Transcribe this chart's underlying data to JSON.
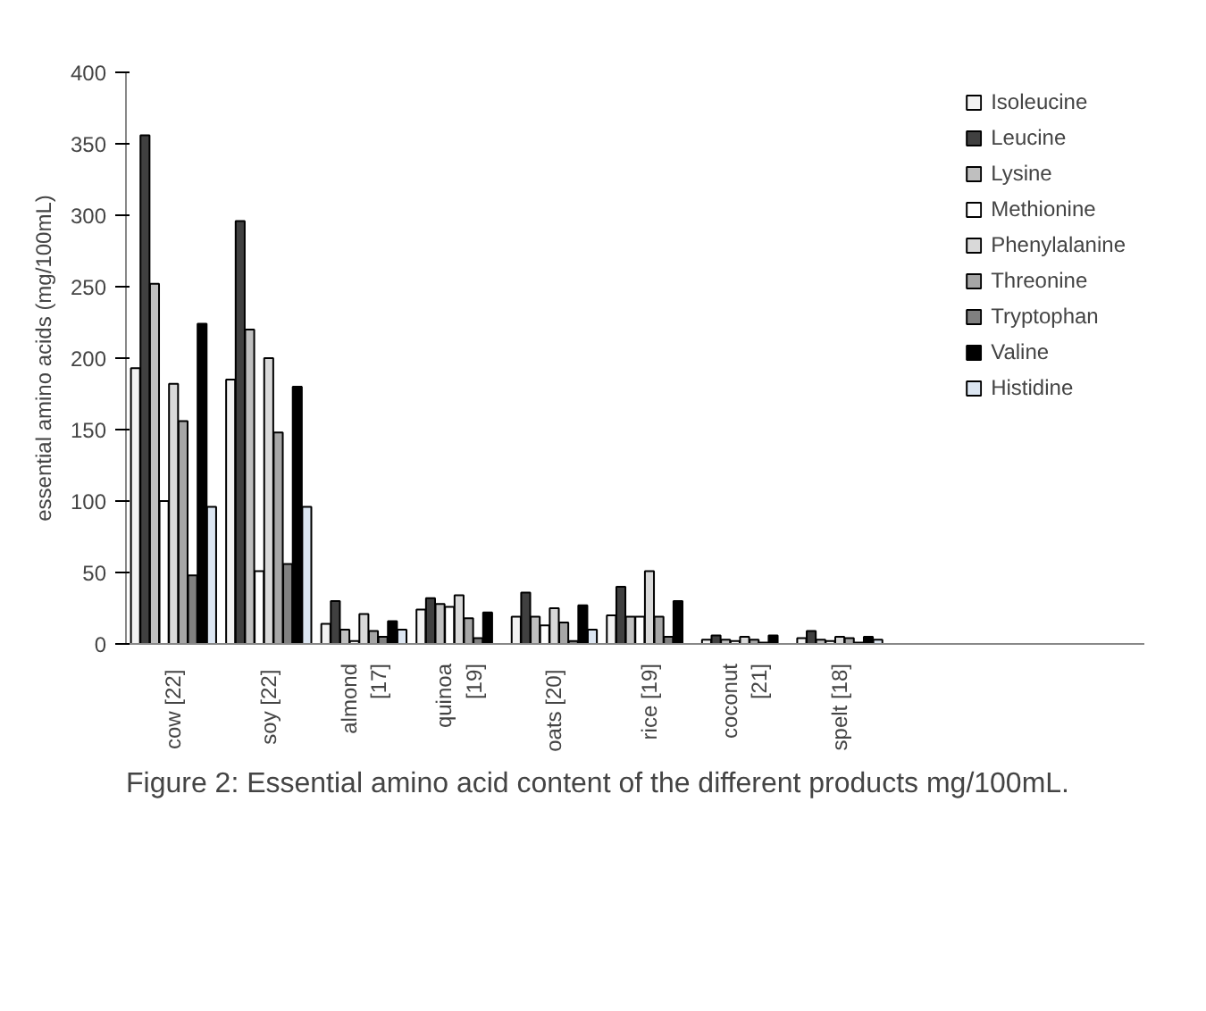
{
  "chart_data": {
    "type": "bar",
    "ylabel": "essential amino acids (mg/100mL)",
    "title": "Figure 2: Essential amino acid content of the different products mg/100mL.",
    "categories": [
      "cow  [22]",
      "soy  [22]",
      "almond\n[17]",
      "quinoa\n[19]",
      "oats  [20]",
      "rice [19]",
      "coconut\n[21]",
      "spelt [18]"
    ],
    "ylim": [
      0,
      400
    ],
    "yticks": [
      0,
      50,
      100,
      150,
      200,
      250,
      300,
      350,
      400
    ],
    "grid": false,
    "legend": "top right",
    "series": [
      {
        "name": "Isoleucine",
        "color": "#f2f2f2",
        "values": [
          193,
          185,
          14,
          24,
          19,
          20,
          3,
          4
        ]
      },
      {
        "name": "Leucine",
        "color": "#404040",
        "values": [
          356,
          296,
          30,
          32,
          36,
          40,
          6,
          9
        ]
      },
      {
        "name": "Lysine",
        "color": "#bfbfbf",
        "values": [
          252,
          220,
          10,
          28,
          19,
          19,
          3,
          3
        ]
      },
      {
        "name": "Methionine",
        "color": "#ffffff",
        "values": [
          100,
          51,
          2,
          26,
          13,
          19,
          2,
          2
        ]
      },
      {
        "name": "Phenylalanine",
        "color": "#d9d9d9",
        "values": [
          182,
          200,
          21,
          34,
          25,
          51,
          5,
          5
        ]
      },
      {
        "name": "Threonine",
        "color": "#a6a6a6",
        "values": [
          156,
          148,
          9,
          18,
          15,
          19,
          3,
          4
        ]
      },
      {
        "name": "Tryptophan",
        "color": "#808080",
        "values": [
          48,
          56,
          5,
          4,
          2,
          5,
          1,
          1
        ]
      },
      {
        "name": "Valine",
        "color": "#000000",
        "values": [
          224,
          180,
          16,
          22,
          27,
          30,
          6,
          5
        ]
      },
      {
        "name": "Histidine",
        "color": "#dce6f2",
        "values": [
          96,
          96,
          10,
          null,
          10,
          null,
          null,
          3
        ]
      }
    ]
  }
}
